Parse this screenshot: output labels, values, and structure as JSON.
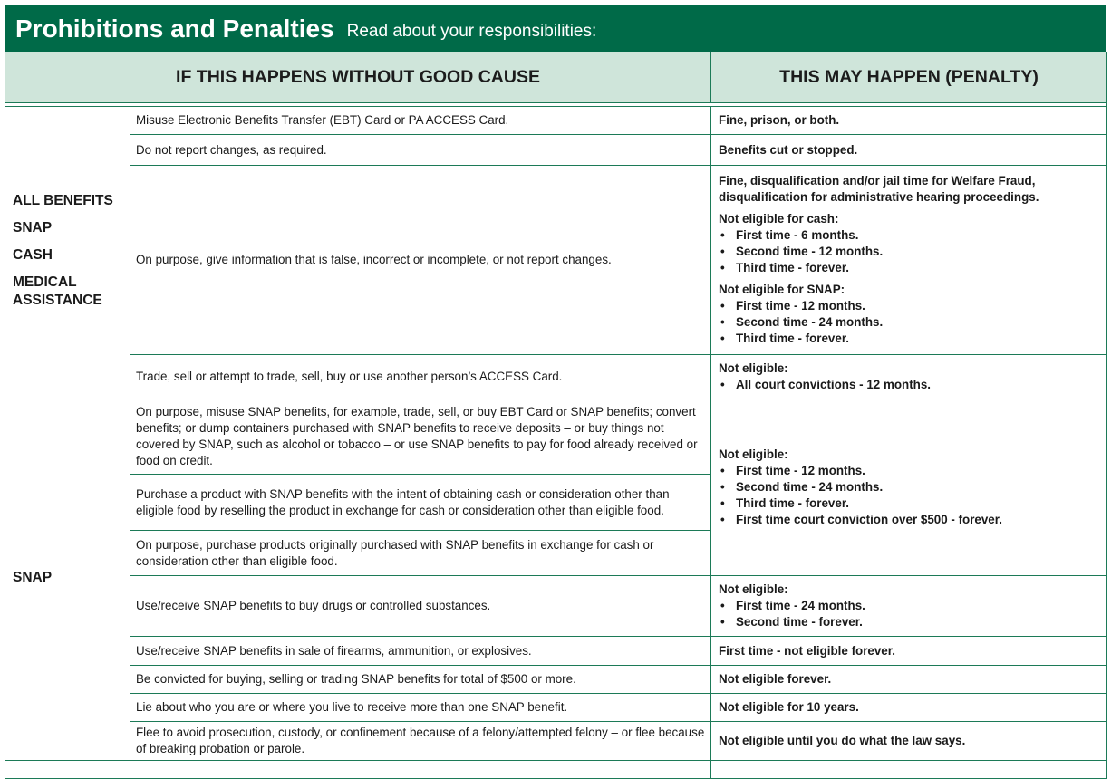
{
  "header": {
    "title": "Prohibitions and Penalties",
    "subtitle": "Read about your responsibilities:"
  },
  "columns": [
    "IF THIS HAPPENS WITHOUT GOOD CAUSE",
    "THIS MAY HAPPEN (PENALTY)"
  ],
  "groups": [
    {
      "labels": [
        "ALL BENEFITS",
        "SNAP",
        "CASH",
        "MEDICAL ASSISTANCE"
      ],
      "rows": [
        {
          "condition": "Misuse Electronic Benefits Transfer (EBT) Card or PA ACCESS Card.",
          "penalty": [
            {
              "heading": "Fine, prison, or both."
            }
          ]
        },
        {
          "condition": "Do not report changes, as required.",
          "penalty": [
            {
              "heading": "Benefits cut or stopped."
            }
          ]
        },
        {
          "condition": "On purpose, give information that is false, incorrect or incomplete, or not report changes.",
          "penalty": [
            {
              "heading": "Fine, disqualification and/or jail time for Welfare Fraud, disqualification for administrative hearing proceedings."
            },
            {
              "heading": "Not eligible for cash:",
              "bullets": [
                "First time - 6 months.",
                "Second time - 12 months.",
                "Third time - forever."
              ]
            },
            {
              "heading": "Not eligible for SNAP:",
              "bullets": [
                "First time - 12 months.",
                "Second time - 24 months.",
                "Third time - forever."
              ]
            }
          ]
        },
        {
          "condition": "Trade, sell or attempt to trade, sell, buy or use another person’s ACCESS Card.",
          "penalty": [
            {
              "heading": "Not eligible:",
              "bullets": [
                "All court convictions - 12 months."
              ]
            }
          ]
        }
      ]
    },
    {
      "labels": [
        "SNAP"
      ],
      "rows": [
        {
          "condition": "On purpose, misuse SNAP benefits, for example, trade, sell, or buy EBT Card or SNAP benefits; convert benefits; or dump containers purchased with SNAP benefits to receive deposits – or buy things not covered by SNAP, such as alcohol or tobacco – or use SNAP benefits to pay for food already received or food on credit.",
          "penalty": [
            {
              "heading": "Not eligible:",
              "bullets": [
                "First time - 12 months.",
                "Second time - 24 months.",
                "Third time - forever.",
                "First time court conviction over $500 - forever."
              ]
            }
          ]
        },
        {
          "condition": "Purchase a product with SNAP benefits with the intent of obtaining cash or consideration other than eligible food by reselling the product in exchange for cash or consideration other than eligible food."
        },
        {
          "condition": "On purpose, purchase products originally purchased with SNAP benefits in exchange for cash or consideration other than eligible food."
        },
        {
          "condition": "Use/receive SNAP benefits to buy drugs or controlled substances.",
          "penalty": [
            {
              "heading": "Not eligible:",
              "bullets": [
                "First time - 24 months.",
                "Second time - forever."
              ]
            }
          ]
        },
        {
          "condition": "Use/receive SNAP benefits in sale of firearms, ammunition, or explosives.",
          "penalty": [
            {
              "heading": "First time - not eligible forever."
            }
          ]
        },
        {
          "condition": "Be convicted for buying, selling or trading SNAP benefits for total of $500 or more.",
          "penalty": [
            {
              "heading": "Not eligible forever."
            }
          ]
        },
        {
          "condition": "Lie about who you are or where you live to receive more than one SNAP benefit.",
          "penalty": [
            {
              "heading": "Not eligible for 10 years."
            }
          ]
        },
        {
          "condition": "Flee to avoid prosecution, custody, or confinement because of a felony/attempted felony – or flee because of breaking probation or parole.",
          "penalty": [
            {
              "heading": "Not eligible until you do what the law says."
            }
          ]
        }
      ]
    }
  ]
}
